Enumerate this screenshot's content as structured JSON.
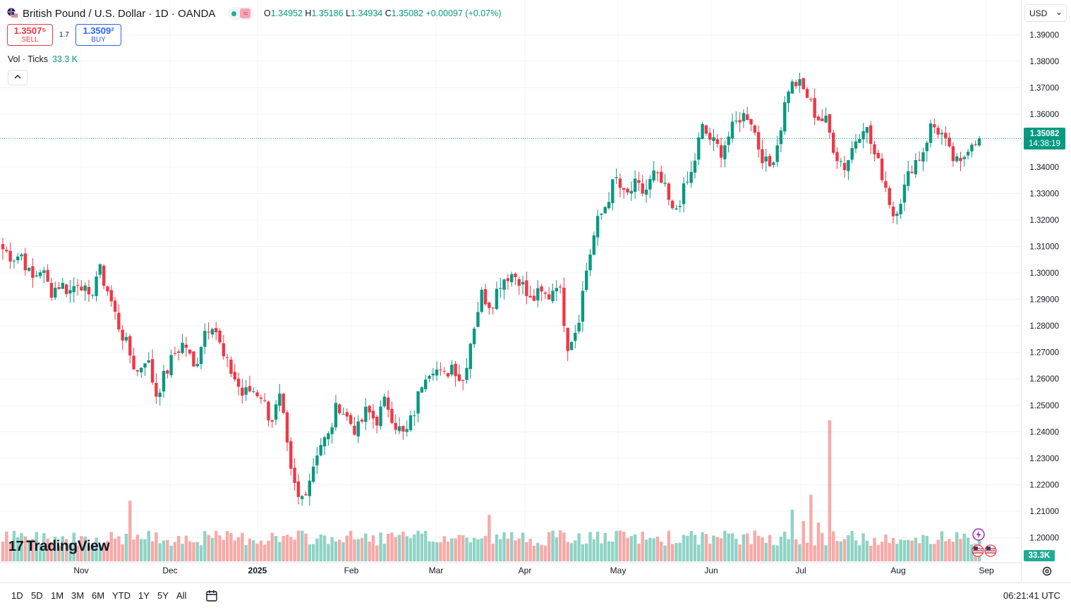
{
  "header": {
    "title": "British Pound / U.S. Dollar · 1D · OANDA",
    "status_badge": "≈",
    "ohlc": {
      "o_label": "O",
      "o": "1.34952",
      "h_label": "H",
      "h": "1.35186",
      "l_label": "L",
      "l": "1.34934",
      "c_label": "C",
      "c": "1.35082",
      "change": "+0.00097 (+0.07%)"
    }
  },
  "trade": {
    "sell_price": "1.3507⁵",
    "sell_label": "SELL",
    "spread": "1.7",
    "buy_price": "1.3509²",
    "buy_label": "BUY"
  },
  "volume": {
    "label": "Vol · Ticks",
    "value": "33.3 K"
  },
  "currency": {
    "selected": "USD"
  },
  "price_axis": {
    "current_price": "1.35082",
    "countdown": "14:38:19"
  },
  "volume_axis": {
    "value": "33.3K"
  },
  "logo": {
    "text": "TradingView"
  },
  "ranges": [
    "1D",
    "5D",
    "1M",
    "3M",
    "6M",
    "YTD",
    "1Y",
    "5Y",
    "All"
  ],
  "clock": "06:21:41 UTC",
  "colors": {
    "up": "#089981",
    "down": "#f23645",
    "vol_up": "#8fd3c5",
    "vol_down": "#f7a9a7",
    "grid": "#f0f3fa"
  },
  "icons": {
    "calendar": "calendar-range-icon",
    "settings": "gear-icon",
    "events": "lightning-icon"
  },
  "chart_data": {
    "type": "candlestick",
    "y_ticks": [
      "1.39000",
      "1.38000",
      "1.37000",
      "1.36000",
      "1.35000",
      "1.34000",
      "1.33000",
      "1.32000",
      "1.31000",
      "1.30000",
      "1.29000",
      "1.28000",
      "1.27000",
      "1.26000",
      "1.25000",
      "1.24000",
      "1.23000",
      "1.22000",
      "1.21000",
      "1.20000"
    ],
    "ylim": [
      1.19,
      1.393
    ],
    "x_ticks": [
      {
        "label": "Nov",
        "bold": false
      },
      {
        "label": "Dec",
        "bold": false
      },
      {
        "label": "2025",
        "bold": true
      },
      {
        "label": "Feb",
        "bold": false
      },
      {
        "label": "Mar",
        "bold": false
      },
      {
        "label": "Apr",
        "bold": false
      },
      {
        "label": "May",
        "bold": false
      },
      {
        "label": "Jun",
        "bold": false
      },
      {
        "label": "Jul",
        "bold": false
      },
      {
        "label": "Aug",
        "bold": false
      },
      {
        "label": "Sep",
        "bold": false
      }
    ],
    "close_keypoints": [
      1.309,
      1.306,
      1.307,
      1.297,
      1.302,
      1.293,
      1.296,
      1.293,
      1.298,
      1.289,
      1.302,
      1.293,
      1.281,
      1.272,
      1.262,
      1.269,
      1.254,
      1.262,
      1.27,
      1.274,
      1.263,
      1.278,
      1.282,
      1.268,
      1.262,
      1.254,
      1.256,
      1.254,
      1.244,
      1.253,
      1.225,
      1.213,
      1.222,
      1.235,
      1.238,
      1.251,
      1.245,
      1.24,
      1.248,
      1.244,
      1.252,
      1.243,
      1.238,
      1.248,
      1.262,
      1.265,
      1.26,
      1.266,
      1.258,
      1.277,
      1.292,
      1.288,
      1.297,
      1.3,
      1.298,
      1.289,
      1.292,
      1.291,
      1.298,
      1.273,
      1.28,
      1.302,
      1.318,
      1.326,
      1.336,
      1.328,
      1.333,
      1.33,
      1.337,
      1.333,
      1.322,
      1.33,
      1.338,
      1.355,
      1.35,
      1.346,
      1.353,
      1.359,
      1.36,
      1.347,
      1.339,
      1.35,
      1.37,
      1.372,
      1.367,
      1.359,
      1.357,
      1.345,
      1.34,
      1.35,
      1.357,
      1.345,
      1.336,
      1.322,
      1.33,
      1.341,
      1.345,
      1.356,
      1.353,
      1.344,
      1.34,
      1.35,
      1.351
    ]
  }
}
